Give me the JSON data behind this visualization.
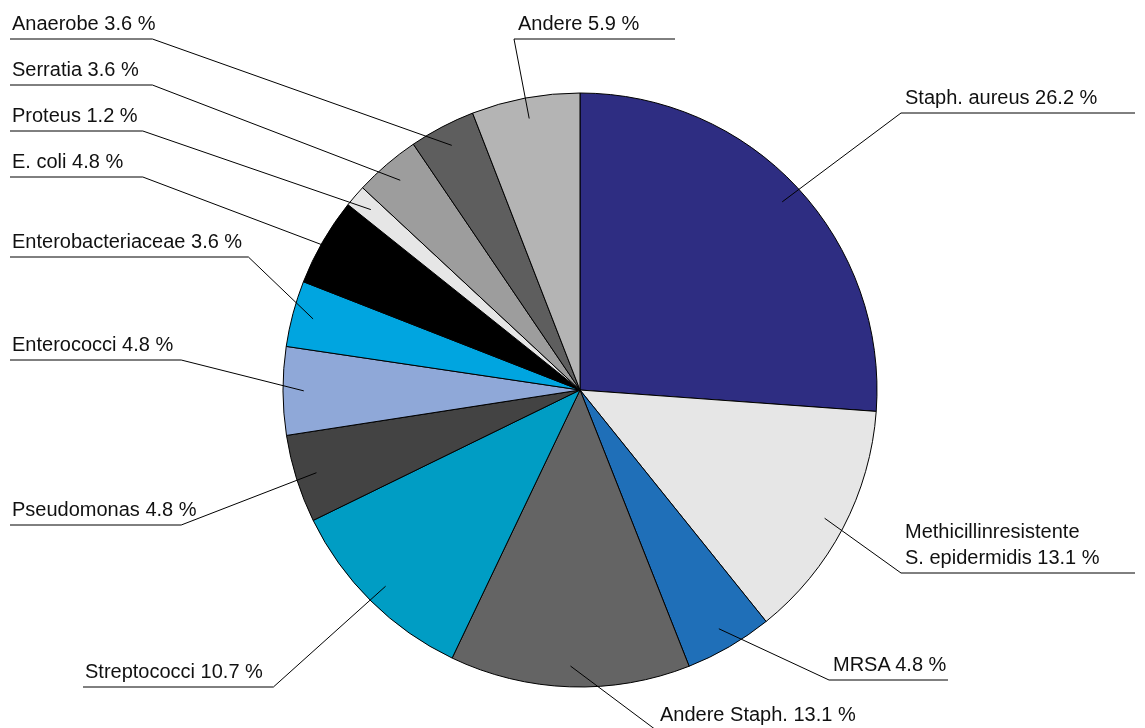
{
  "chart_data": {
    "type": "pie",
    "categories": [
      "Staph. aureus",
      "Methicillinresistente S. epidermidis",
      "MRSA",
      "Andere Staph.",
      "Streptococci",
      "Pseudomonas",
      "Enterococci",
      "Enterobacteriaceae",
      "E. coli",
      "Proteus",
      "Serratia",
      "Anaerobe",
      "Andere"
    ],
    "values": [
      26.2,
      13.1,
      4.8,
      13.1,
      10.7,
      4.8,
      4.8,
      3.6,
      4.8,
      1.2,
      3.6,
      3.6,
      5.9
    ],
    "value_labels": [
      "26.2 %",
      "13.1 %",
      "4.8 %",
      "13.1 %",
      "10.7 %",
      "4.8 %",
      "4.8 %",
      "3.6 %",
      "4.8 %",
      "1.2 %",
      "3.6 %",
      "3.6 %",
      "5.9 %"
    ],
    "colors": [
      "#2e2d82",
      "#e6e6e6",
      "#1f6fb8",
      "#646464",
      "#009dc4",
      "#434343",
      "#8fa8d8",
      "#00a5e0",
      "#000000",
      "#e6e6e6",
      "#9d9d9d",
      "#5e5e5e",
      "#b4b4b4"
    ]
  }
}
